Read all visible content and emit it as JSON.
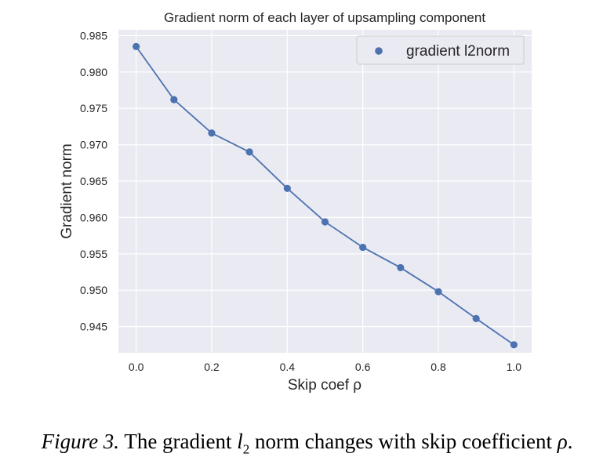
{
  "chart_data": {
    "type": "line",
    "title": "Gradient norm of each layer of upsampling component",
    "xlabel": "Skip coef ρ",
    "ylabel": "Gradient norm",
    "x": [
      0.0,
      0.1,
      0.2,
      0.3,
      0.4,
      0.5,
      0.6,
      0.7,
      0.8,
      0.9,
      1.0
    ],
    "series": [
      {
        "name": "gradient l2norm",
        "values": [
          0.9835,
          0.9762,
          0.9716,
          0.969,
          0.964,
          0.9594,
          0.9559,
          0.9531,
          0.9498,
          0.9461,
          0.9425
        ],
        "color": "#4c72b0"
      }
    ],
    "xticks": [
      "0.0",
      "0.2",
      "0.4",
      "0.6",
      "0.8",
      "1.0"
    ],
    "yticks": [
      "0.945",
      "0.950",
      "0.955",
      "0.960",
      "0.965",
      "0.970",
      "0.975",
      "0.980",
      "0.985"
    ],
    "xlim": [
      -0.047,
      1.047
    ],
    "ylim": [
      0.9414,
      0.9858
    ],
    "grid": true,
    "background": "#eaeaf2",
    "legend_position": "top-right"
  },
  "caption": {
    "lead": "Figure 3.",
    "text_before": "The gradient",
    "symbol": "l",
    "subscript": "2",
    "text_after": "norm changes with skip coefficient",
    "symbol2": "ρ",
    "end": "."
  }
}
